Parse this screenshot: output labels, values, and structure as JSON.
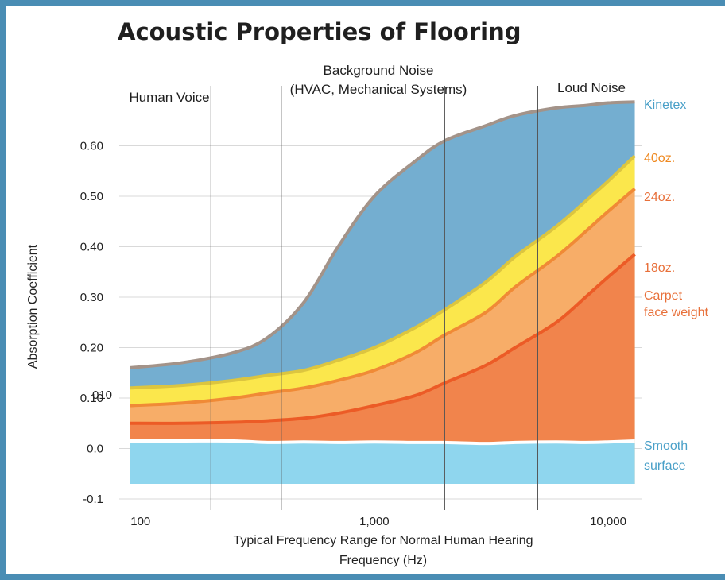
{
  "chart_data": {
    "type": "area",
    "title": "Acoustic Properties of Flooring",
    "ylabel": "Absorption Coefficient",
    "xlabel": "Typical Frequency Range for Normal Human Hearing",
    "xlabel2": "Frequency (Hz)",
    "x_scale": "log",
    "xlim": [
      85,
      14000
    ],
    "ylim": [
      -0.1,
      0.7
    ],
    "y_ticks": [
      {
        "value": -0.1,
        "label": "-0.1"
      },
      {
        "value": 0.0,
        "label": "0.0"
      },
      {
        "value": 0.1,
        "label": "0.10"
      },
      {
        "value": 0.2,
        "label": "0.20"
      },
      {
        "value": 0.3,
        "label": "0.30"
      },
      {
        "value": 0.4,
        "label": "0.40"
      },
      {
        "value": 0.5,
        "label": "0.50"
      },
      {
        "value": 0.6,
        "label": "0.60"
      }
    ],
    "y_tick_note": {
      "value": 0.1,
      "label": "010"
    },
    "x_ticks": [
      {
        "value": 100,
        "label": "100"
      },
      {
        "value": 1000,
        "label": "1,000"
      },
      {
        "value": 10000,
        "label": "10,000"
      }
    ],
    "x": [
      90,
      150,
      250,
      350,
      500,
      700,
      1000,
      1500,
      2000,
      3000,
      4000,
      6000,
      8000,
      10000,
      13000
    ],
    "series": [
      {
        "name": "Kinetex",
        "color": "#74aed0",
        "line": "#a39389",
        "values": [
          0.16,
          0.17,
          0.19,
          0.22,
          0.29,
          0.4,
          0.5,
          0.57,
          0.61,
          0.64,
          0.66,
          0.675,
          0.68,
          0.685,
          0.687
        ]
      },
      {
        "name": "40oz.",
        "color": "#fbe74c",
        "line": "#dcc53f",
        "values": [
          0.12,
          0.125,
          0.135,
          0.145,
          0.155,
          0.175,
          0.2,
          0.24,
          0.275,
          0.33,
          0.38,
          0.44,
          0.49,
          0.53,
          0.58
        ]
      },
      {
        "name": "24oz.",
        "color": "#f7ad68",
        "line": "#f08a36",
        "values": [
          0.085,
          0.09,
          0.1,
          0.11,
          0.12,
          0.135,
          0.155,
          0.19,
          0.225,
          0.27,
          0.32,
          0.38,
          0.43,
          0.47,
          0.515
        ]
      },
      {
        "name": "18oz.",
        "color": "#f1844c",
        "line": "#ec5b26",
        "values": [
          0.05,
          0.05,
          0.052,
          0.055,
          0.06,
          0.07,
          0.085,
          0.105,
          0.13,
          0.165,
          0.2,
          0.25,
          0.3,
          0.34,
          0.385
        ]
      },
      {
        "name": "Smooth surface",
        "color": "#8fd6ee",
        "line": "#ffffff",
        "values": [
          0.015,
          0.015,
          0.015,
          0.012,
          0.013,
          0.012,
          0.013,
          0.012,
          0.012,
          0.01,
          0.012,
          0.013,
          0.012,
          0.013,
          0.015
        ]
      }
    ],
    "baseline": -0.07,
    "series_labels": [
      {
        "text": "Kinetex",
        "color": "#4aa0c8"
      },
      {
        "text": "40oz.",
        "color": "#ef8a22"
      },
      {
        "text": "24oz.",
        "color": "#e8703a"
      },
      {
        "text": "18oz.",
        "color": "#e8703a"
      },
      {
        "text": "Carpet",
        "color": "#e8703a"
      },
      {
        "text": "face weight",
        "color": "#e8703a"
      },
      {
        "text": "Smooth",
        "color": "#4aa0c8"
      },
      {
        "text": "surface",
        "color": "#4aa0c8"
      }
    ],
    "frequency_bands": [
      {
        "lines": [
          "Human Voice"
        ]
      },
      {
        "lines": [
          "Background Noise",
          "(HVAC, Mechanical Systems)"
        ]
      },
      {
        "lines": [
          "Loud Noise"
        ]
      }
    ],
    "band_divider_x": [
      200,
      400,
      2000,
      5000
    ],
    "grid": true
  }
}
